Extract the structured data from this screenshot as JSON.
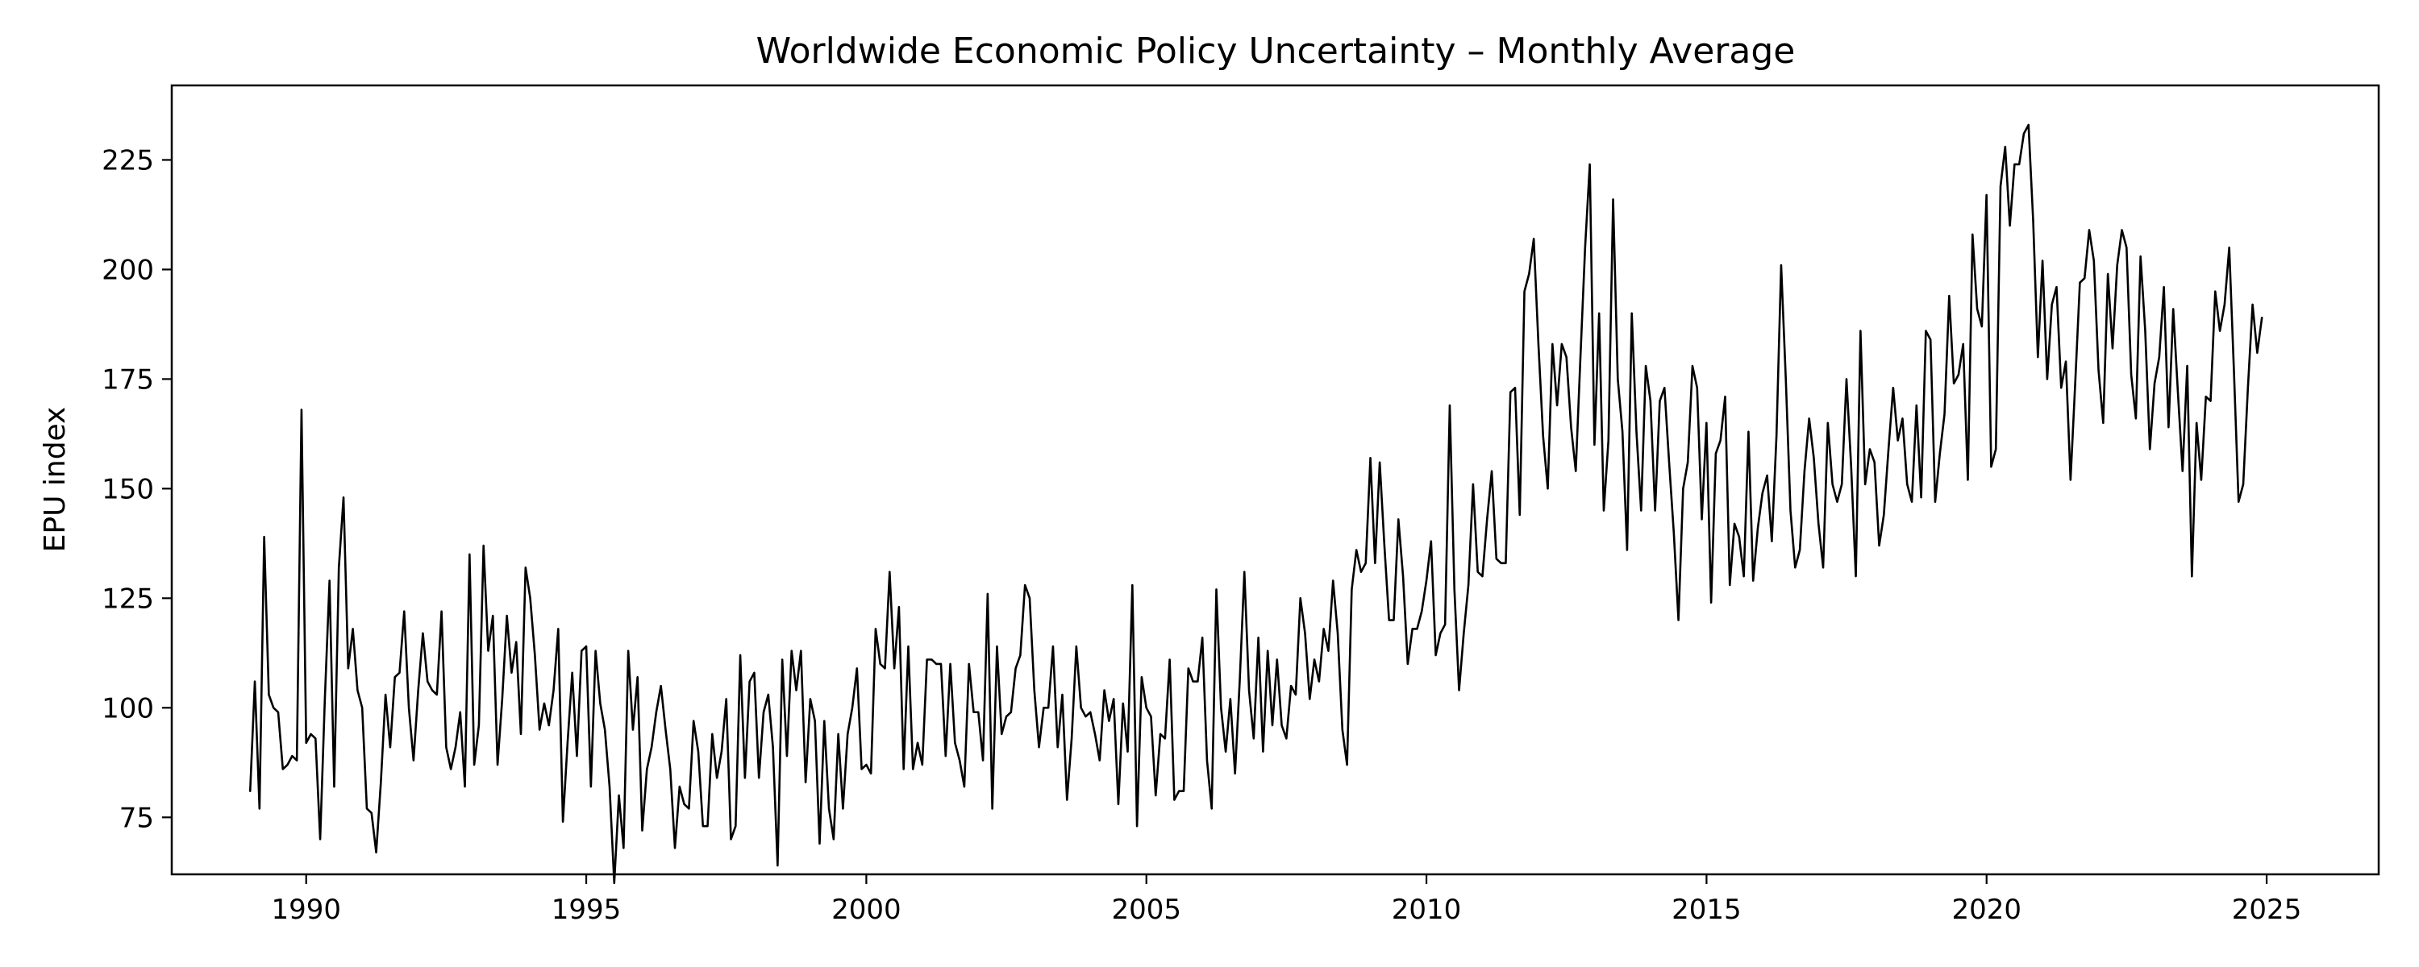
{
  "chart_data": {
    "type": "line",
    "title": "Worldwide Economic Policy Uncertainty – Monthly Average",
    "xlabel": "",
    "ylabel": "EPU index",
    "xlim": [
      1987.6,
      2027.0
    ],
    "ylim": [
      62,
      242
    ],
    "x_ticks": [
      1990,
      1995,
      2000,
      2005,
      2010,
      2015,
      2020,
      2025
    ],
    "y_ticks": [
      75,
      100,
      125,
      150,
      175,
      200,
      225
    ],
    "grid": false,
    "legend": "none",
    "line_color": "#000000",
    "series": [
      {
        "x_start": 1989.0,
        "x_step": 0.08333,
        "values": [
          81,
          106,
          77,
          139,
          103,
          100,
          99,
          86,
          87,
          89,
          88,
          168,
          92,
          94,
          93,
          70,
          102,
          129,
          82,
          132,
          148,
          109,
          118,
          104,
          100,
          77,
          76,
          67,
          83,
          103,
          91,
          107,
          108,
          122,
          100,
          88,
          104,
          117,
          106,
          104,
          103,
          122,
          91,
          86,
          91,
          99,
          82,
          135,
          87,
          96,
          137,
          113,
          121,
          87,
          102,
          121,
          108,
          115,
          94,
          132,
          125,
          112,
          95,
          101,
          96,
          104,
          118,
          74,
          92,
          108,
          89,
          113,
          114,
          82,
          113,
          101,
          95,
          82,
          60,
          80,
          68,
          113,
          95,
          107,
          72,
          86,
          91,
          99,
          105,
          95,
          86,
          68,
          82,
          78,
          77,
          97,
          90,
          73,
          73,
          94,
          84,
          90,
          102,
          70,
          73,
          112,
          84,
          106,
          108,
          84,
          99,
          103,
          91,
          64,
          111,
          89,
          113,
          104,
          113,
          83,
          102,
          97,
          69,
          97,
          77,
          70,
          94,
          77,
          94,
          100,
          109,
          86,
          87,
          85,
          118,
          110,
          109,
          131,
          109,
          123,
          86,
          114,
          86,
          92,
          87,
          111,
          111,
          110,
          110,
          89,
          110,
          92,
          88,
          82,
          110,
          99,
          99,
          88,
          126,
          77,
          114,
          94,
          98,
          99,
          109,
          112,
          128,
          125,
          104,
          91,
          100,
          100,
          114,
          91,
          103,
          79,
          93,
          114,
          100,
          98,
          99,
          94,
          88,
          104,
          97,
          102,
          78,
          101,
          90,
          128,
          73,
          107,
          100,
          98,
          80,
          94,
          93,
          111,
          79,
          81,
          81,
          109,
          106,
          106,
          116,
          88,
          77,
          127,
          100,
          90,
          102,
          85,
          106,
          131,
          104,
          93,
          116,
          90,
          113,
          96,
          111,
          96,
          93,
          105,
          103,
          125,
          117,
          102,
          111,
          106,
          118,
          113,
          129,
          117,
          95,
          87,
          127,
          136,
          131,
          133,
          157,
          133,
          156,
          137,
          120,
          120,
          143,
          130,
          110,
          118,
          118,
          122,
          129,
          138,
          112,
          117,
          119,
          169,
          127,
          104,
          117,
          128,
          151,
          131,
          130,
          143,
          154,
          134,
          133,
          133,
          172,
          173,
          144,
          195,
          199,
          207,
          183,
          162,
          150,
          183,
          169,
          183,
          180,
          164,
          154,
          180,
          205,
          224,
          160,
          190,
          145,
          161,
          216,
          175,
          163,
          136,
          190,
          163,
          145,
          178,
          170,
          145,
          170,
          173,
          156,
          140,
          120,
          150,
          156,
          178,
          173,
          143,
          165,
          124,
          158,
          161,
          171,
          128,
          142,
          139,
          130,
          163,
          129,
          141,
          149,
          153,
          138,
          162,
          201,
          175,
          145,
          132,
          136,
          154,
          166,
          157,
          142,
          132,
          165,
          151,
          147,
          151,
          175,
          155,
          130,
          186,
          151,
          159,
          156,
          137,
          144,
          159,
          173,
          161,
          166,
          151,
          147,
          169,
          148,
          186,
          184,
          147,
          158,
          167,
          194,
          174,
          176,
          183,
          152,
          208,
          191,
          187,
          217,
          155,
          159,
          219,
          228,
          210,
          224,
          224,
          231,
          233,
          211,
          180,
          202,
          175,
          192,
          196,
          173,
          179,
          152,
          174,
          197,
          198,
          209,
          202,
          177,
          165,
          199,
          182,
          201,
          209,
          205,
          176,
          166,
          203,
          186,
          159,
          174,
          180,
          196,
          164,
          191,
          172,
          154,
          178,
          130,
          165,
          152,
          171,
          170,
          195,
          186,
          192,
          205,
          177,
          147,
          151,
          173,
          192,
          181,
          189
        ]
      }
    ]
  }
}
